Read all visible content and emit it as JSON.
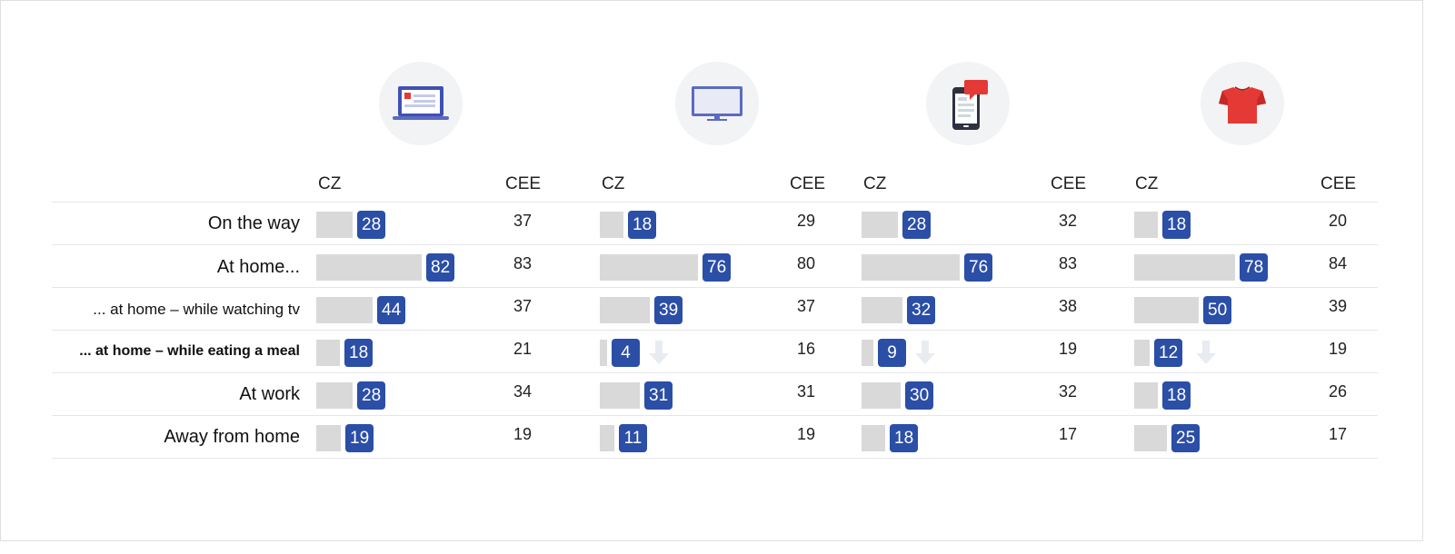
{
  "chart_data": {
    "type": "table",
    "column_header_labels": [
      "CZ",
      "CEE"
    ],
    "rows": [
      "On the way",
      "At home...",
      "... at home – while watching tv",
      "... at home – while eating a meal",
      "At work",
      "Away from home"
    ],
    "highlighted_row": "... at home – while eating a meal",
    "groups": [
      {
        "icon": "laptop-icon",
        "cz": [
          28,
          82,
          44,
          18,
          28,
          19
        ],
        "cee": [
          37,
          83,
          37,
          21,
          34,
          19
        ],
        "down_arrow": [
          false,
          false,
          false,
          false,
          false,
          false
        ]
      },
      {
        "icon": "tv-monitor-icon",
        "cz": [
          18,
          76,
          39,
          4,
          31,
          11
        ],
        "cee": [
          29,
          80,
          37,
          16,
          31,
          19
        ],
        "down_arrow": [
          false,
          false,
          false,
          true,
          false,
          false
        ]
      },
      {
        "icon": "smartphone-icon",
        "cz": [
          28,
          76,
          32,
          9,
          30,
          18
        ],
        "cee": [
          32,
          83,
          38,
          19,
          32,
          17
        ],
        "down_arrow": [
          false,
          false,
          false,
          true,
          false,
          false
        ]
      },
      {
        "icon": "tshirt-icon",
        "cz": [
          18,
          78,
          50,
          12,
          18,
          25
        ],
        "cee": [
          20,
          84,
          39,
          19,
          26,
          17
        ],
        "down_arrow": [
          false,
          false,
          false,
          true,
          false,
          false
        ]
      }
    ]
  },
  "colors": {
    "badge": "#2b4ea6",
    "bar": "#d9d9d9",
    "icon_bg": "#f1f3f5",
    "icon_blue": "#5c6bc0",
    "icon_red": "#e53935",
    "arrow": "#e8ecf1"
  }
}
